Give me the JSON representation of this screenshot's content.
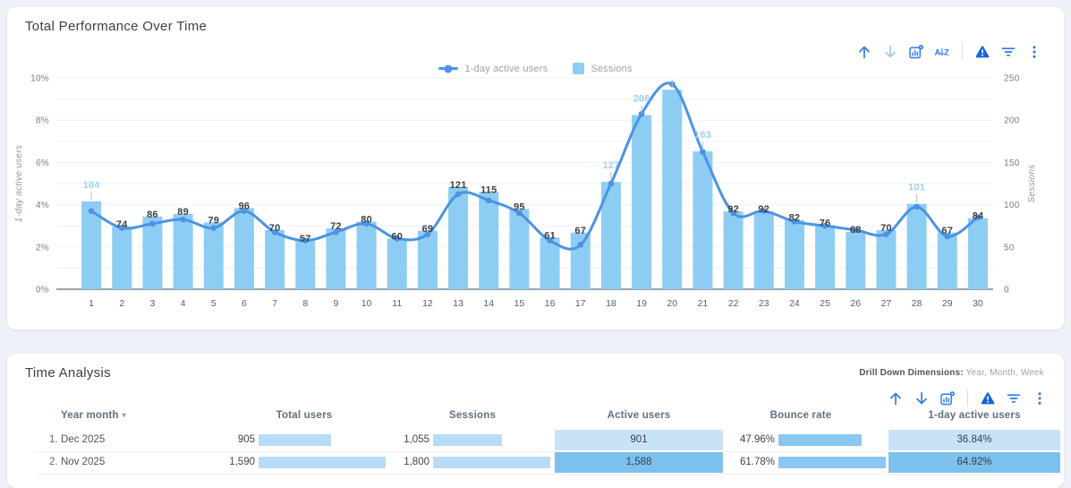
{
  "colors": {
    "bar": "#8ecdf3",
    "line": "#4b93e4",
    "accent_label": "#9ed0f3",
    "dark_label": "#3c4043",
    "leader_line": "#b9bfc7",
    "heat_low": "#c8e3f8",
    "heat_high": "#7cc0ed",
    "table_bar": "#b7dbf8",
    "bounce_bar": "#8ac7f2"
  },
  "cards": {
    "performance": {
      "title": "Total Performance Over Time",
      "toolbar": [
        {
          "name": "sort-up"
        },
        {
          "name": "sort-down",
          "disabled": true
        },
        {
          "name": "explore"
        },
        {
          "name": "sort-az"
        },
        {
          "name": "divider"
        },
        {
          "name": "alert"
        },
        {
          "name": "filter"
        },
        {
          "name": "more"
        }
      ]
    },
    "time_analysis": {
      "title": "Time Analysis",
      "drill_label": "Drill Down Dimensions:",
      "drill_values": " Year, Month, Week",
      "toolbar": [
        {
          "name": "sort-up"
        },
        {
          "name": "sort-down"
        },
        {
          "name": "explore"
        },
        {
          "name": "divider"
        },
        {
          "name": "alert"
        },
        {
          "name": "filter"
        },
        {
          "name": "more"
        }
      ],
      "table": {
        "columns": [
          "Year month",
          "Total users",
          "Sessions",
          "Active users",
          "Bounce rate",
          "1-day active users"
        ],
        "sort_indicator": "▾",
        "rows": [
          {
            "num": "1.",
            "year_month": "Dec 2025",
            "total_users": "905",
            "sessions": "1,055",
            "active_users": "901",
            "bounce_rate": "47.96%",
            "one_day_active_users": "36.84%"
          },
          {
            "num": "2.",
            "year_month": "Nov 2025",
            "total_users": "1,590",
            "sessions": "1,800",
            "active_users": "1,588",
            "bounce_rate": "61.78%",
            "one_day_active_users": "64.92%"
          }
        ]
      }
    }
  },
  "chart_data": {
    "type": "combo bar+line",
    "title": "Total Performance Over Time",
    "categories": [
      1,
      2,
      3,
      4,
      5,
      6,
      7,
      8,
      9,
      10,
      11,
      12,
      13,
      14,
      15,
      16,
      17,
      18,
      19,
      20,
      21,
      22,
      23,
      24,
      25,
      26,
      27,
      28,
      29,
      30
    ],
    "series": [
      {
        "name": "1-day active users",
        "type": "line",
        "axis": "left",
        "values": [
          3.7,
          2.9,
          3.1,
          3.3,
          2.9,
          3.7,
          2.7,
          2.3,
          2.7,
          3.1,
          2.4,
          2.6,
          4.5,
          4.2,
          3.6,
          2.3,
          2.1,
          5.0,
          8.3,
          9.7,
          6.5,
          3.6,
          3.7,
          3.2,
          3.0,
          2.8,
          2.6,
          3.9,
          2.5,
          3.4
        ]
      },
      {
        "name": "Sessions",
        "type": "bar",
        "axis": "right",
        "values": [
          104,
          74,
          86,
          89,
          79,
          96,
          70,
          57,
          72,
          80,
          60,
          69,
          121,
          115,
          95,
          61,
          67,
          127,
          206,
          236,
          163,
          92,
          92,
          82,
          76,
          68,
          70,
          101,
          67,
          84
        ]
      }
    ],
    "left_axis": {
      "label": "1-day active users",
      "range": [
        0,
        10
      ],
      "ticks": [
        "0%",
        "2%",
        "4%",
        "6%",
        "8%",
        "10%"
      ],
      "tick_values": [
        0,
        2,
        4,
        6,
        8,
        10
      ]
    },
    "right_axis": {
      "label": "Sessions",
      "range": [
        0,
        250
      ],
      "ticks": [
        "0",
        "50",
        "100",
        "150",
        "200",
        "250"
      ],
      "tick_values": [
        0,
        50,
        100,
        150,
        200,
        250
      ]
    },
    "grid": true,
    "legend_position": "top-center",
    "accent_label_days": [
      1,
      18,
      19,
      21,
      28
    ],
    "hidden_label_days": [
      20
    ]
  }
}
